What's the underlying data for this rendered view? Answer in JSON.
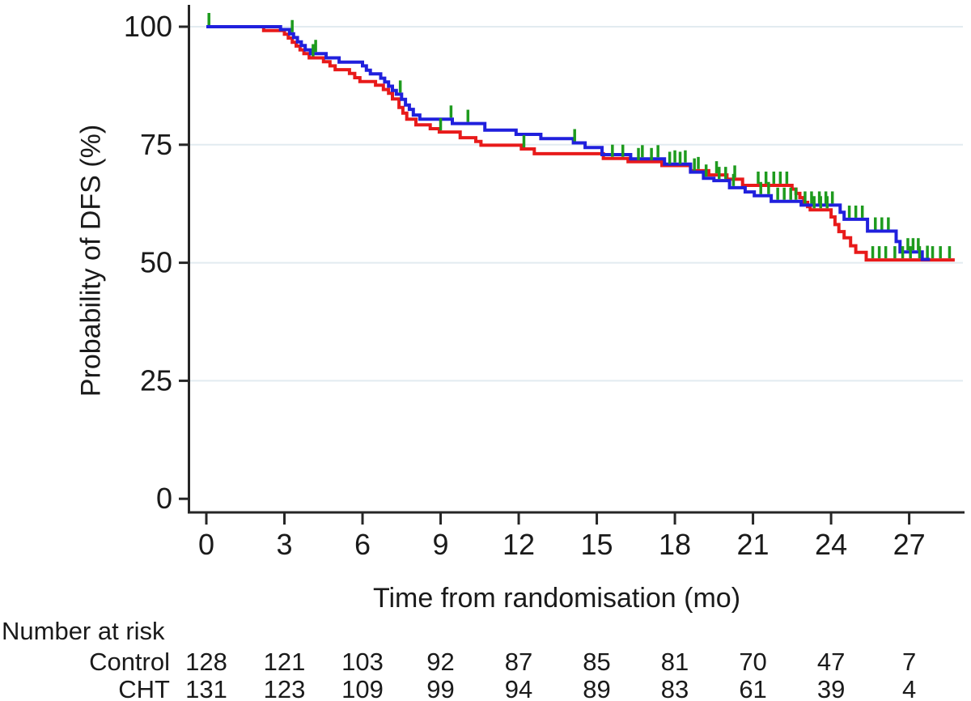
{
  "figure": {
    "background": "#ffffff",
    "axis_color": "#262626",
    "grid_color": "#e2ebf0",
    "text_color": "#1a1a1a"
  },
  "chart_data": {
    "type": "line",
    "subtype": "kaplan-meier-step",
    "title": "",
    "xlabel": "Time from randomisation (mo)",
    "ylabel": "Probability of DFS (%)",
    "xlim": [
      0,
      29
    ],
    "ylim": [
      0,
      100
    ],
    "x_ticks": [
      0,
      3,
      6,
      9,
      12,
      15,
      18,
      21,
      24,
      27
    ],
    "y_ticks": [
      0,
      25,
      50,
      75,
      100
    ],
    "grid": "horizontal-light",
    "legend": "none",
    "censor_color": "#1e9b1e",
    "series": [
      {
        "name": "Control",
        "color": "#e81a1a",
        "end_t": 28.75,
        "steps": [
          [
            0,
            100
          ],
          [
            2.2,
            99.2
          ],
          [
            3.0,
            98.4
          ],
          [
            3.15,
            97.6
          ],
          [
            3.3,
            96.7
          ],
          [
            3.45,
            95.9
          ],
          [
            3.6,
            95.1
          ],
          [
            3.75,
            94.3
          ],
          [
            3.95,
            93.4
          ],
          [
            4.5,
            92.6
          ],
          [
            4.75,
            91.7
          ],
          [
            4.95,
            90.9
          ],
          [
            5.5,
            90.1
          ],
          [
            5.7,
            89.2
          ],
          [
            5.9,
            88.4
          ],
          [
            6.5,
            87.6
          ],
          [
            6.8,
            86.7
          ],
          [
            7.0,
            85.9
          ],
          [
            7.15,
            84.7
          ],
          [
            7.4,
            82.9
          ],
          [
            7.55,
            81.7
          ],
          [
            7.7,
            80.4
          ],
          [
            8.05,
            79.2
          ],
          [
            8.6,
            78.4
          ],
          [
            8.95,
            77.7
          ],
          [
            9.75,
            76.5
          ],
          [
            10.35,
            75.7
          ],
          [
            10.55,
            74.9
          ],
          [
            12.1,
            74.1
          ],
          [
            12.6,
            73.1
          ],
          [
            15.25,
            72.1
          ],
          [
            16.2,
            71.4
          ],
          [
            17.5,
            70.6
          ],
          [
            18.6,
            69.5
          ],
          [
            19.3,
            68.6
          ],
          [
            20.0,
            67.7
          ],
          [
            20.6,
            66.4
          ],
          [
            22.5,
            65.6
          ],
          [
            22.65,
            64.7
          ],
          [
            22.8,
            63.8
          ],
          [
            22.95,
            62.8
          ],
          [
            23.1,
            61.9
          ],
          [
            23.2,
            61.2
          ],
          [
            24.0,
            59.7
          ],
          [
            24.15,
            58.1
          ],
          [
            24.3,
            56.6
          ],
          [
            24.5,
            55.3
          ],
          [
            24.75,
            53.6
          ],
          [
            24.95,
            52.2
          ],
          [
            25.35,
            50.6
          ]
        ],
        "censor_t": [
          4.1,
          9.0,
          12.2,
          15.6,
          16.0,
          16.6,
          17.1,
          17.8,
          18.2,
          18.9,
          19.6,
          20.3,
          21.2,
          21.5,
          21.8,
          22.05,
          22.3,
          23.35,
          23.6,
          23.85,
          25.6,
          25.85,
          26.1,
          26.45,
          26.75,
          27.05,
          27.4,
          27.9,
          28.2,
          28.55
        ]
      },
      {
        "name": "CHT",
        "color": "#2020dd",
        "end_t": 27.8,
        "steps": [
          [
            0,
            100
          ],
          [
            2.85,
            99.4
          ],
          [
            3.2,
            98.5
          ],
          [
            3.35,
            97.7
          ],
          [
            3.5,
            96.8
          ],
          [
            3.65,
            96.0
          ],
          [
            3.8,
            95.1
          ],
          [
            4.0,
            94.3
          ],
          [
            4.6,
            93.4
          ],
          [
            5.1,
            92.5
          ],
          [
            6.0,
            91.7
          ],
          [
            6.15,
            90.8
          ],
          [
            6.3,
            90.0
          ],
          [
            6.7,
            89.1
          ],
          [
            6.85,
            88.3
          ],
          [
            7.0,
            87.4
          ],
          [
            7.15,
            86.5
          ],
          [
            7.3,
            85.7
          ],
          [
            7.5,
            84.6
          ],
          [
            7.65,
            83.4
          ],
          [
            7.8,
            82.5
          ],
          [
            7.95,
            81.3
          ],
          [
            8.2,
            80.4
          ],
          [
            9.45,
            79.5
          ],
          [
            10.7,
            78.1
          ],
          [
            11.9,
            77.2
          ],
          [
            12.85,
            76.3
          ],
          [
            14.1,
            75.4
          ],
          [
            14.55,
            74.4
          ],
          [
            15.2,
            72.9
          ],
          [
            16.3,
            72.0
          ],
          [
            17.6,
            70.9
          ],
          [
            18.6,
            69.2
          ],
          [
            19.1,
            67.9
          ],
          [
            19.5,
            67.4
          ],
          [
            20.1,
            65.9
          ],
          [
            20.7,
            65.0
          ],
          [
            21.05,
            64.2
          ],
          [
            21.7,
            63.0
          ],
          [
            22.85,
            62.2
          ],
          [
            24.35,
            60.7
          ],
          [
            24.5,
            59.2
          ],
          [
            25.4,
            56.7
          ],
          [
            26.5,
            54.5
          ],
          [
            26.65,
            52.3
          ],
          [
            27.5,
            50.7
          ]
        ],
        "censor_t": [
          0.1,
          3.3,
          4.2,
          7.45,
          9.4,
          10.05,
          14.15,
          16.75,
          17.35,
          18.0,
          18.4,
          18.75,
          19.2,
          19.7,
          19.95,
          20.25,
          21.3,
          21.6,
          21.95,
          22.2,
          22.45,
          22.65,
          23.0,
          23.25,
          23.55,
          23.8,
          24.05,
          24.7,
          24.95,
          25.2,
          25.7,
          25.95,
          26.2,
          26.95,
          27.15,
          27.35,
          27.7
        ]
      }
    ],
    "at_risk": {
      "title": "Number at risk",
      "time_points": [
        0,
        3,
        6,
        9,
        12,
        15,
        18,
        21,
        24,
        27
      ],
      "rows": [
        {
          "label": "Control",
          "counts": [
            128,
            121,
            103,
            92,
            87,
            85,
            81,
            70,
            47,
            7
          ]
        },
        {
          "label": "CHT",
          "counts": [
            131,
            123,
            109,
            99,
            94,
            89,
            83,
            61,
            39,
            4
          ]
        }
      ]
    }
  }
}
